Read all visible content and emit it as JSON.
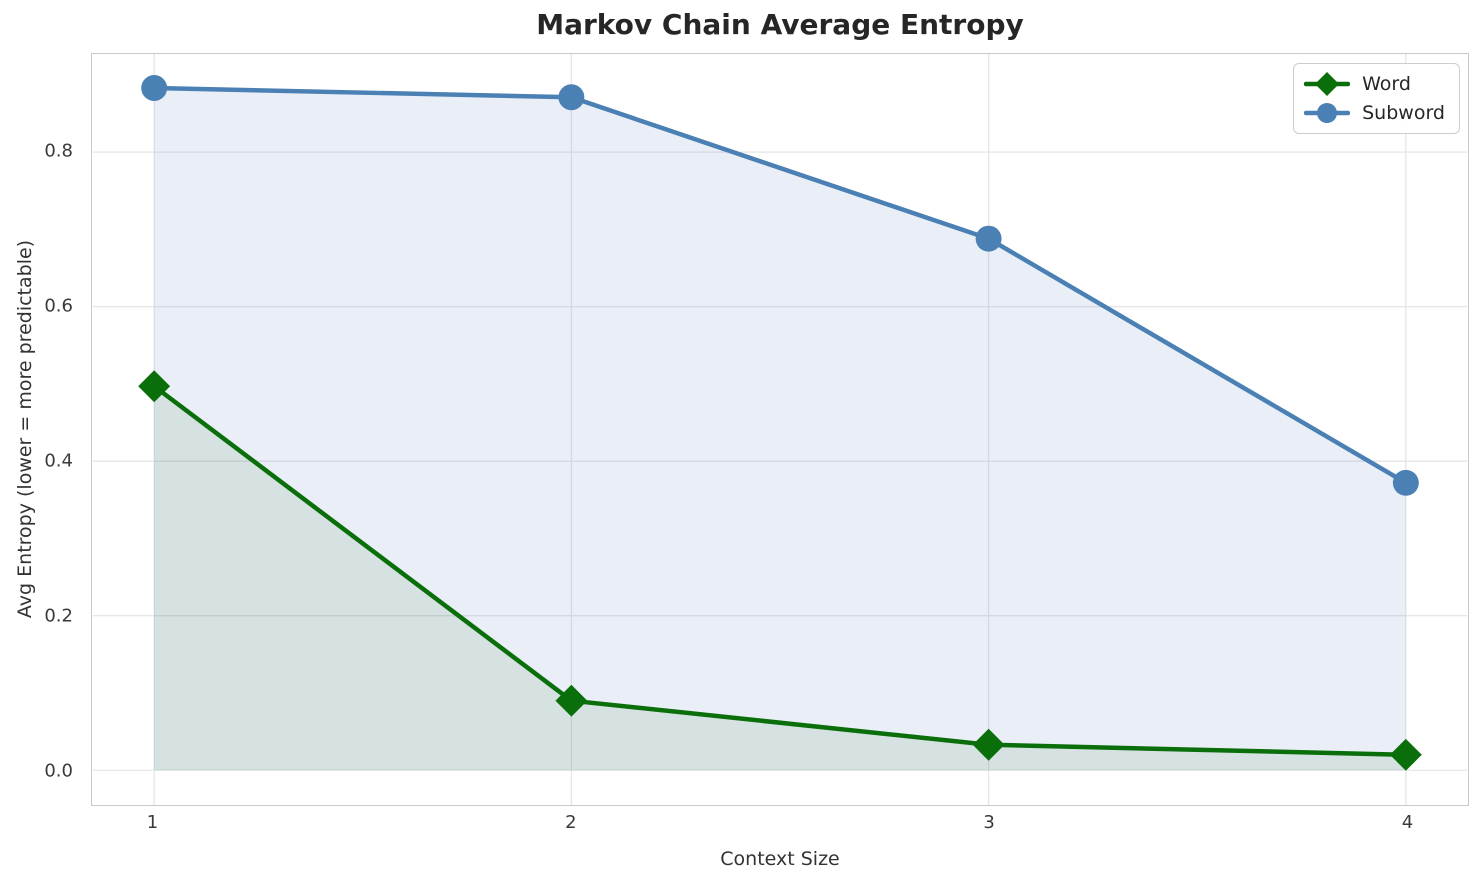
{
  "chart_data": {
    "type": "line",
    "title": "Markov Chain Average Entropy",
    "xlabel": "Context Size",
    "ylabel": "Avg Entropy (lower = more predictable)",
    "x": [
      1,
      2,
      3,
      4
    ],
    "series": [
      {
        "name": "Word",
        "color": "#0a6e0a",
        "marker": "diamond",
        "fill_color": "rgba(10,110,10,0.09)",
        "values": [
          0.497,
          0.09,
          0.033,
          0.02
        ]
      },
      {
        "name": "Subword",
        "color": "#4a80b4",
        "marker": "circle",
        "fill_color": "rgba(70,115,190,0.12)",
        "values": [
          0.883,
          0.871,
          0.688,
          0.372
        ]
      }
    ],
    "xticks": {
      "values": [
        1,
        2,
        3,
        4
      ],
      "labels": [
        "1",
        "2",
        "3",
        "4"
      ]
    },
    "yticks": {
      "values": [
        0.0,
        0.2,
        0.4,
        0.6,
        0.8
      ],
      "labels": [
        "0.0",
        "0.2",
        "0.4",
        "0.6",
        "0.8"
      ]
    },
    "xlim": [
      0.853,
      4.147
    ],
    "ylim": [
      -0.045,
      0.927
    ],
    "fill_baseline": 0.0,
    "grid": true,
    "legend_position": "upper right",
    "legend_entries": [
      "Word",
      "Subword"
    ]
  },
  "style_colors": {
    "grid": "#e6e6e6",
    "spine": "#c9c9c9",
    "title_text": "#262626",
    "tick_text": "#3a3a3a"
  }
}
